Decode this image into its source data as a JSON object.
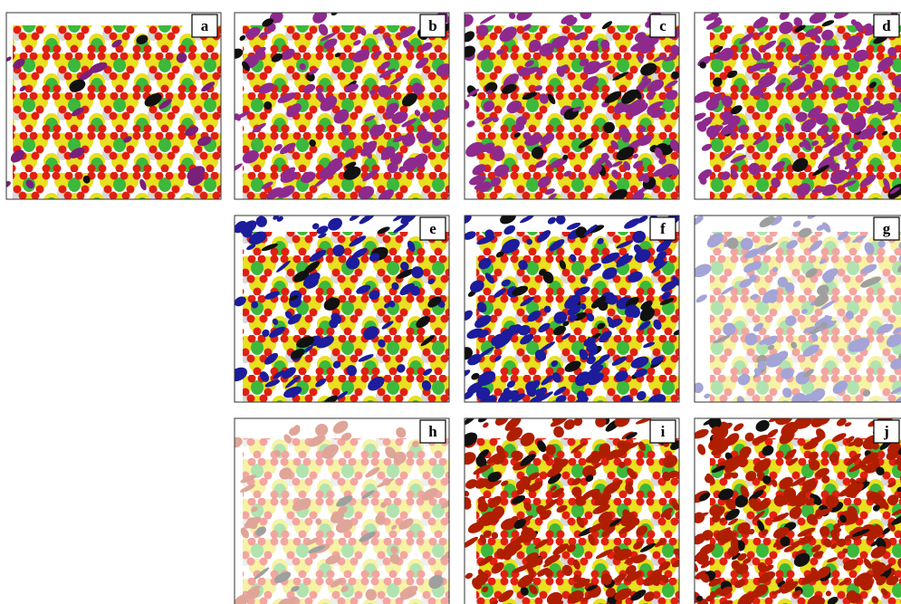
{
  "panels": [
    {
      "label": "a"
    },
    {
      "label": "b"
    },
    {
      "label": "c"
    },
    {
      "label": "d"
    },
    {
      "label": "e"
    },
    {
      "label": "f"
    },
    {
      "label": "g"
    },
    {
      "label": "h"
    },
    {
      "label": "i"
    },
    {
      "label": "j"
    }
  ]
}
